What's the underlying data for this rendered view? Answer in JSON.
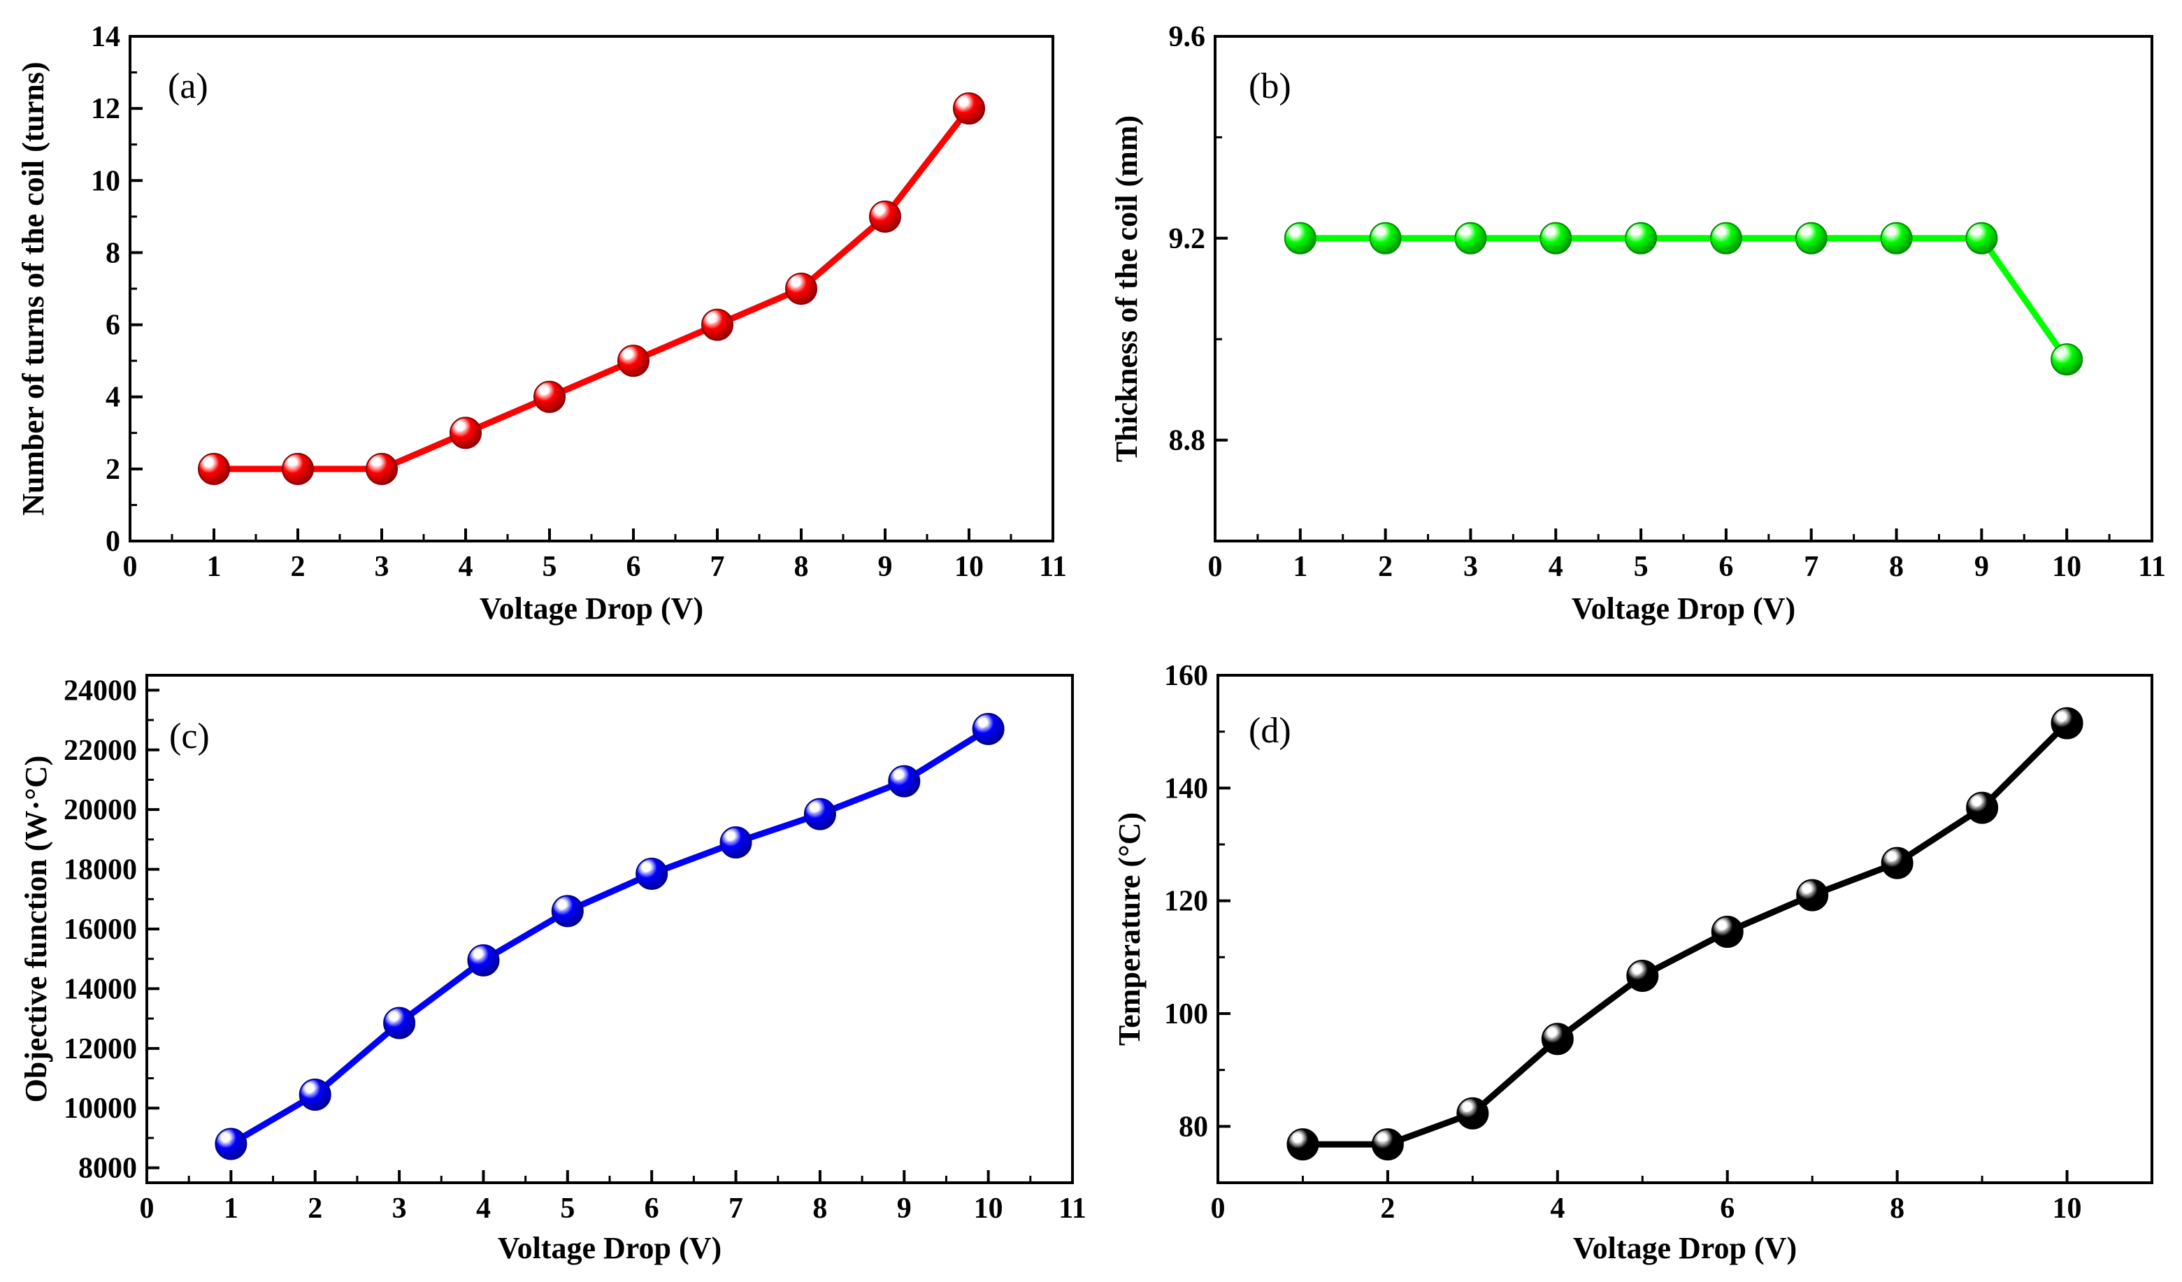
{
  "chart_data": [
    {
      "id": "a",
      "type": "line",
      "panel_label": "(a)",
      "title": "",
      "xlabel": "Voltage Drop (V)",
      "ylabel": "Number of turns of the coil (turns)",
      "xlim": [
        0,
        11
      ],
      "ylim": [
        0,
        14
      ],
      "xticks": [
        0,
        1,
        2,
        3,
        4,
        5,
        6,
        7,
        8,
        9,
        10,
        11
      ],
      "yticks": [
        0,
        2,
        4,
        6,
        8,
        10,
        12,
        14
      ],
      "grid": false,
      "series": [
        {
          "name": "Number of turns",
          "color": "#ff0000",
          "x": [
            1,
            2,
            3,
            4,
            5,
            6,
            7,
            8,
            9,
            10
          ],
          "values": [
            2,
            2,
            2,
            3,
            4,
            5,
            6,
            7,
            9,
            12
          ]
        }
      ]
    },
    {
      "id": "b",
      "type": "line",
      "panel_label": "(b)",
      "title": "",
      "xlabel": "Voltage Drop (V)",
      "ylabel": "Thickness of the coil (mm)",
      "xlim": [
        0,
        11
      ],
      "ylim": [
        8.6,
        9.6
      ],
      "xticks": [
        0,
        1,
        2,
        3,
        4,
        5,
        6,
        7,
        8,
        9,
        10,
        11
      ],
      "yticks": [
        8.8,
        9.2,
        9.6
      ],
      "ytick_labels": [
        "8.8",
        "9.2",
        "9.6"
      ],
      "grid": false,
      "series": [
        {
          "name": "Thickness",
          "color": "#00ff00",
          "x": [
            1,
            2,
            3,
            4,
            5,
            6,
            7,
            8,
            9,
            10
          ],
          "values": [
            9.2,
            9.2,
            9.2,
            9.2,
            9.2,
            9.2,
            9.2,
            9.2,
            9.2,
            8.96
          ]
        }
      ]
    },
    {
      "id": "c",
      "type": "line",
      "panel_label": "(c)",
      "title": "",
      "xlabel": "Voltage Drop (V)",
      "ylabel": "Objective function (W·°C)",
      "xlim": [
        0,
        11
      ],
      "ylim": [
        7500,
        24500
      ],
      "xticks": [
        0,
        1,
        2,
        3,
        4,
        5,
        6,
        7,
        8,
        9,
        10,
        11
      ],
      "yticks": [
        8000,
        10000,
        12000,
        14000,
        16000,
        18000,
        20000,
        22000,
        24000
      ],
      "grid": false,
      "series": [
        {
          "name": "Objective function",
          "color": "#0000ff",
          "x": [
            1,
            2,
            3,
            4,
            5,
            6,
            7,
            8,
            9,
            10
          ],
          "values": [
            8800,
            10450,
            12850,
            14950,
            16600,
            17850,
            18900,
            19850,
            20950,
            22700
          ]
        }
      ]
    },
    {
      "id": "d",
      "type": "line",
      "panel_label": "(d)",
      "title": "",
      "xlabel": "Voltage Drop (V)",
      "ylabel": "Temperature (°C)",
      "xlim": [
        0,
        11
      ],
      "ylim": [
        70,
        160
      ],
      "xticks": [
        0,
        2,
        4,
        6,
        8,
        10
      ],
      "yticks": [
        80,
        100,
        120,
        140,
        160
      ],
      "grid": false,
      "series": [
        {
          "name": "Temperature",
          "color": "#000000",
          "x": [
            1,
            2,
            3,
            4,
            5,
            6,
            7,
            8,
            9,
            10
          ],
          "values": [
            76.8,
            76.8,
            82.3,
            95.5,
            106.7,
            114.5,
            121.0,
            126.7,
            136.5,
            151.5
          ]
        }
      ]
    }
  ]
}
